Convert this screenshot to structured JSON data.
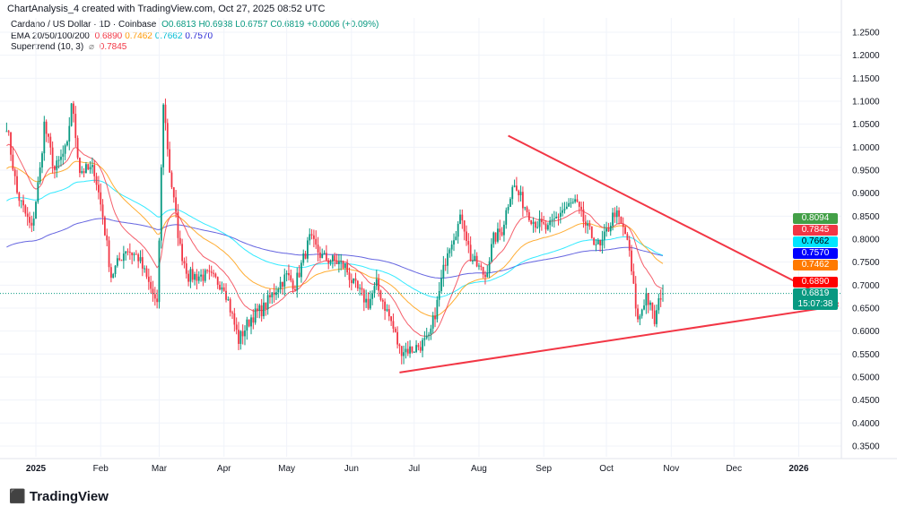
{
  "credit": "ChartAnalysis_4 created with TradingView.com, Oct 27, 2025 08:52 UTC",
  "legend": {
    "symbol": "Cardano / US Dollar · 1D · Coinbase",
    "o": "O0.6813",
    "h": "H0.6938",
    "l": "L0.6757",
    "c": "C0.6819",
    "change": "+0.0006 (+0.09%)",
    "ema_label": "EMA 20/50/100/200",
    "ema20": "0.6890",
    "ema50": "0.7462",
    "ema100": "0.7662",
    "ema200": "0.7570",
    "st_label": "Supertrend (10, 3)",
    "st_icon": "⌀",
    "st_value": "0.7845"
  },
  "logo": "TradingView",
  "chart_data": {
    "type": "candlestick",
    "x_unit": "days since 2025-01-01",
    "close_keypoints": [
      [
        -14,
        1.05
      ],
      [
        -9,
        0.9
      ],
      [
        -2,
        0.82
      ],
      [
        2,
        0.95
      ],
      [
        4,
        1.05
      ],
      [
        9,
        0.95
      ],
      [
        15,
        1.0
      ],
      [
        17,
        1.1
      ],
      [
        21,
        0.95
      ],
      [
        28,
        0.95
      ],
      [
        32,
        0.85
      ],
      [
        36,
        0.72
      ],
      [
        43,
        0.78
      ],
      [
        49,
        0.76
      ],
      [
        56,
        0.68
      ],
      [
        58,
        0.65
      ],
      [
        61,
        1.1
      ],
      [
        64,
        0.95
      ],
      [
        69,
        0.78
      ],
      [
        73,
        0.72
      ],
      [
        82,
        0.72
      ],
      [
        90,
        0.7
      ],
      [
        97,
        0.58
      ],
      [
        103,
        0.63
      ],
      [
        109,
        0.65
      ],
      [
        116,
        0.7
      ],
      [
        120,
        0.72
      ],
      [
        124,
        0.7
      ],
      [
        131,
        0.8
      ],
      [
        137,
        0.76
      ],
      [
        144,
        0.75
      ],
      [
        148,
        0.74
      ],
      [
        152,
        0.7
      ],
      [
        159,
        0.66
      ],
      [
        163,
        0.7
      ],
      [
        170,
        0.62
      ],
      [
        174,
        0.56
      ],
      [
        180,
        0.56
      ],
      [
        188,
        0.58
      ],
      [
        192,
        0.66
      ],
      [
        197,
        0.78
      ],
      [
        204,
        0.85
      ],
      [
        208,
        0.76
      ],
      [
        215,
        0.72
      ],
      [
        219,
        0.8
      ],
      [
        223,
        0.82
      ],
      [
        228,
        0.92
      ],
      [
        233,
        0.88
      ],
      [
        238,
        0.84
      ],
      [
        245,
        0.82
      ],
      [
        251,
        0.86
      ],
      [
        258,
        0.88
      ],
      [
        264,
        0.82
      ],
      [
        270,
        0.78
      ],
      [
        277,
        0.86
      ],
      [
        283,
        0.8
      ],
      [
        288,
        0.62
      ],
      [
        292,
        0.68
      ],
      [
        296,
        0.62
      ],
      [
        299,
        0.68
      ],
      [
        300,
        0.6813
      ]
    ],
    "last": {
      "open": 0.6813,
      "high": 0.6938,
      "low": 0.6757,
      "close": 0.6819
    },
    "y_ticks": [
      "1.2500",
      "1.2000",
      "1.1500",
      "1.1000",
      "1.0500",
      "1.0000",
      "0.9500",
      "0.9000",
      "0.8500",
      "0.8000",
      "0.7500",
      "0.7000",
      "0.6500",
      "0.6000",
      "0.5500",
      "0.5000",
      "0.4500",
      "0.4000",
      "0.3500"
    ],
    "ylim": [
      0.35,
      1.25
    ],
    "x_ticks": [
      {
        "label": "2025",
        "d": 0,
        "bold": true
      },
      {
        "label": "Feb",
        "d": 31
      },
      {
        "label": "Mar",
        "d": 59
      },
      {
        "label": "Apr",
        "d": 90
      },
      {
        "label": "May",
        "d": 120
      },
      {
        "label": "Jun",
        "d": 151
      },
      {
        "label": "Jul",
        "d": 181
      },
      {
        "label": "Aug",
        "d": 212
      },
      {
        "label": "Sep",
        "d": 243
      },
      {
        "label": "Oct",
        "d": 273
      },
      {
        "label": "Nov",
        "d": 304
      },
      {
        "label": "Dec",
        "d": 334
      },
      {
        "label": "2026",
        "d": 365,
        "bold": true
      }
    ],
    "trendlines": [
      {
        "name": "upper",
        "from": [
          226,
          1.025
        ],
        "to": [
          384,
          0.66
        ]
      },
      {
        "name": "lower",
        "from": [
          174,
          0.51
        ],
        "to": [
          384,
          0.655
        ]
      }
    ],
    "price_labels": [
      {
        "value": "0.8094",
        "color": "#43a047"
      },
      {
        "value": "0.7845",
        "color": "#f23645"
      },
      {
        "value": "0.7662",
        "color": "#00e5ff",
        "text": "#000"
      },
      {
        "value": "0.7570",
        "color": "#0000ff"
      },
      {
        "value": "0.7462",
        "color": "#ff7a00"
      },
      {
        "value": "0.6890",
        "color": "#ff0000"
      },
      {
        "value": "0.6819",
        "color": "#089981",
        "sub": "15:07:38"
      }
    ],
    "colors": {
      "up": "#089981",
      "down": "#f23645",
      "ema20": "#f23645",
      "ema50": "#ff9800",
      "ema100": "#00e5ff",
      "ema200": "#3f3fd8",
      "trend": "#f23645"
    }
  }
}
